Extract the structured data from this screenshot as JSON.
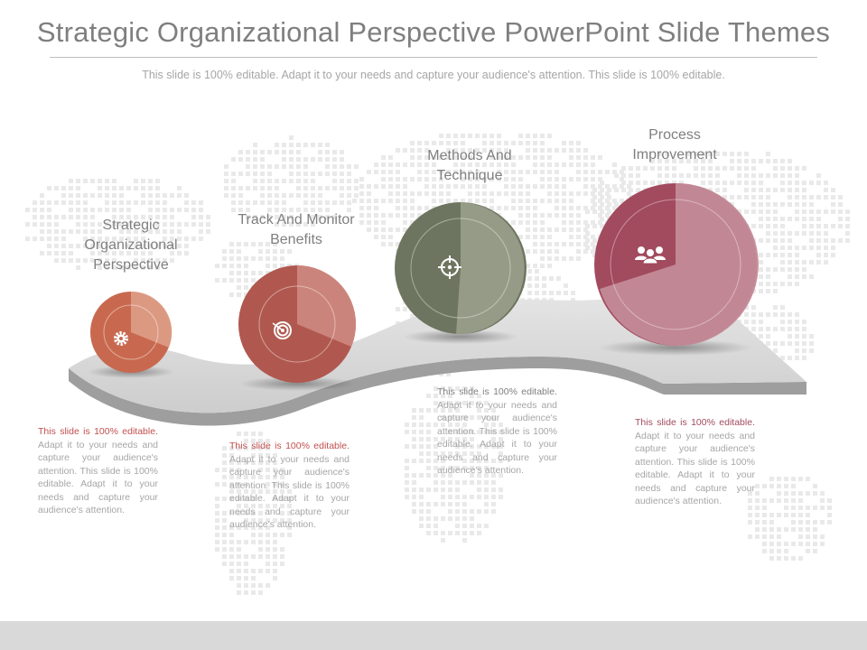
{
  "slide": {
    "title": "Strategic Organizational Perspective PowerPoint Slide Themes",
    "subtitle": "This slide is 100% editable. Adapt it to your needs and capture your audience's attention. This slide is 100% editable."
  },
  "steps": [
    {
      "label_line1": "Strategic",
      "label_line2": "Organizational",
      "label_line3": "Perspective",
      "icon": "gear-icon",
      "color": "#c8694f",
      "lead": "This slide is 100% editable.",
      "body": " Adapt it to your needs and capture your audience's attention. This slide is 100% editable. Adapt it to your needs and capture your audience's attention."
    },
    {
      "label_line1": "Track And Monitor",
      "label_line2": "Benefits",
      "icon": "target-icon",
      "color": "#b0584f",
      "lead": "This slide is 100% editable.",
      "body": " Adapt it to your needs and capture your audience's attention. This slide is 100% editable. Adapt it to your needs and capture your audience's attention."
    },
    {
      "label_line1": "Methods And",
      "label_line2": "Technique",
      "icon": "crosshair-icon",
      "color": "#6d7560",
      "lead": "This slide is 100% editable.",
      "body": " Adapt it to your needs and capture your audience's attention. This slide is 100% editable. Adapt it to your needs and capture your audience's attention."
    },
    {
      "label_line1": "Process",
      "label_line2": "Improvement",
      "icon": "team-icon",
      "color": "#a24a5e",
      "lead": "This slide is 100% editable.",
      "body": " Adapt it to your needs and capture your audience's attention. This slide is 100% editable. Adapt it to your needs and capture your audience's attention."
    }
  ],
  "colors": {
    "lead_text_1": "#c0504d",
    "lead_text_2": "#c0504d",
    "lead_text_3": "#7f7f7f",
    "lead_text_4": "#a24a5e",
    "road": "#cfcfcf"
  }
}
